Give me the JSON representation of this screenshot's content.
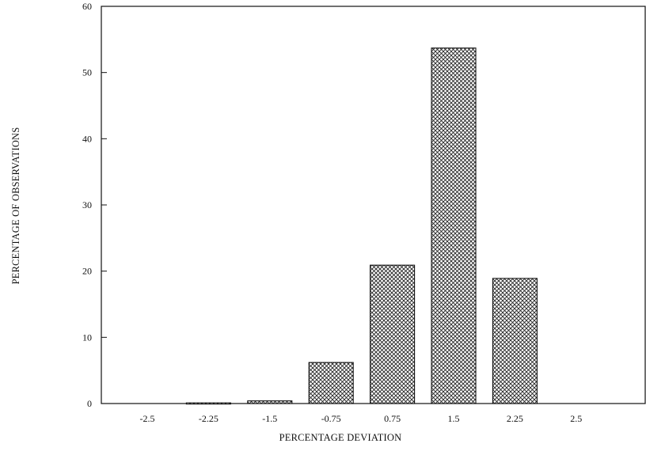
{
  "chart_data": {
    "type": "bar",
    "title": "",
    "xlabel": "PERCENTAGE DEVIATION",
    "ylabel": "PERCENTAGE OF OBSERVATIONS",
    "categories": [
      "-2.5",
      "-2.25",
      "-1.5",
      "-0.75",
      "0.75",
      "1.5",
      "2.25",
      "2.5"
    ],
    "values": [
      0,
      0.1,
      0.4,
      6.2,
      20.9,
      53.7,
      18.9,
      0
    ],
    "ylim": [
      0,
      60
    ],
    "yticks": [
      0,
      10,
      20,
      30,
      40,
      50,
      60
    ],
    "grid": false,
    "legend": "none",
    "bar_fill": "crosshatch",
    "colors": {
      "ink": "#111111",
      "background": "#ffffff"
    }
  }
}
